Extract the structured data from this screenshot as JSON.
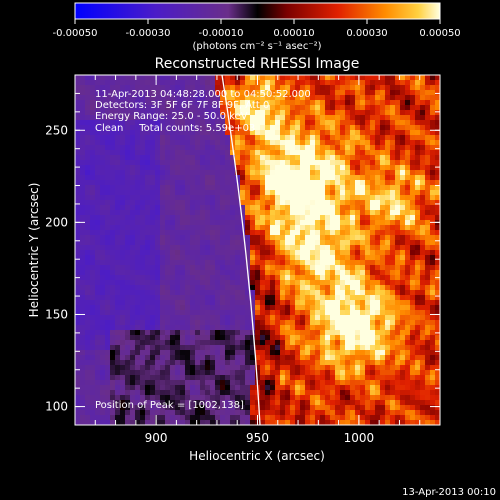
{
  "colorbar": {
    "ticks": [
      "-0.00050",
      "-0.00030",
      "-0.00010",
      "0.00010",
      "0.00030",
      "0.00050"
    ],
    "units": "(photons cm⁻² s⁻¹ asec⁻²)"
  },
  "title": "Reconstructed RHESSI Image",
  "info_lines": [
    "11-Apr-2013 04:48:28.000 to 04:50:52.000",
    "Detectors: 3F 5F 6F 7F 8F 9F, Att 0",
    "Energy Range: 25.0 - 50.0 keV",
    "Clean     Total counts: 5.59e+03"
  ],
  "peak_text": "Position of Peak = [1002,138]",
  "axes": {
    "xlabel": "Heliocentric X (arcsec)",
    "ylabel": "Heliocentric Y (arcsec)",
    "xticks": [
      "900",
      "950",
      "1000"
    ],
    "yticks": [
      "100",
      "150",
      "200",
      "250"
    ],
    "xlim": [
      860,
      1040
    ],
    "ylim": [
      90,
      280
    ]
  },
  "timestamp": "13-Apr-2013 00:10"
}
